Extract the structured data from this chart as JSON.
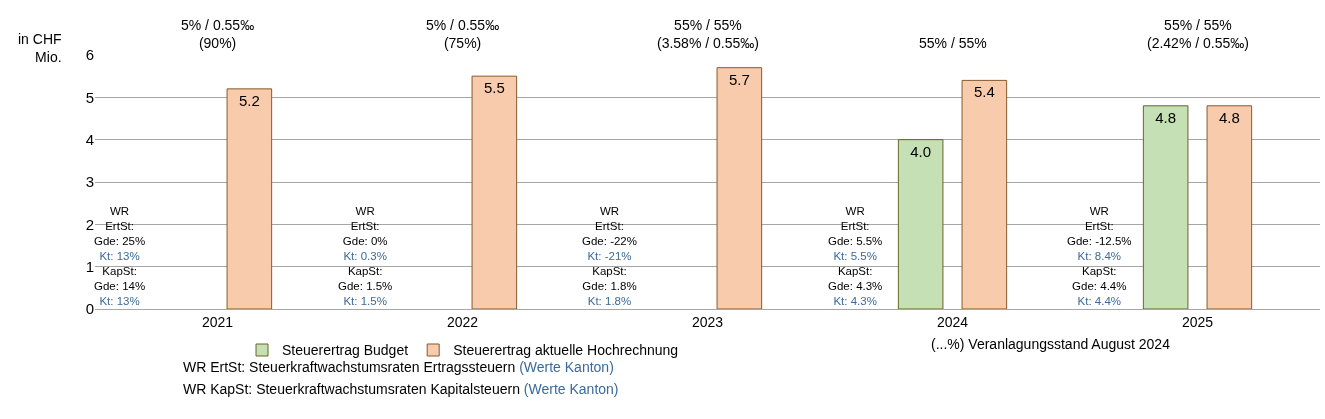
{
  "chart_data": {
    "type": "bar",
    "ylabel": "in CHF Mio.",
    "categories": [
      "2021",
      "2022",
      "2023",
      "2024",
      "2025"
    ],
    "series": [
      {
        "name": "Steuerertrag Budget",
        "color": "#c5e0b4",
        "values": [
          null,
          null,
          null,
          4.0,
          4.8
        ],
        "value_labels": [
          null,
          null,
          null,
          "4.0",
          "4.8"
        ]
      },
      {
        "name": "Steuerertrag aktuelle Hochrechnung",
        "color": "#f8cbad",
        "values": [
          5.2,
          5.5,
          5.7,
          5.4,
          4.8
        ],
        "value_labels": [
          "5.2",
          "5.5",
          "5.7",
          "5.4",
          "4.8"
        ]
      }
    ],
    "ylim": [
      0,
      6
    ],
    "yticks": [
      0,
      1,
      2,
      3,
      4,
      5,
      6
    ],
    "grid": "y",
    "legend": "bottom",
    "annotations": [
      "5% / 0.55‰\n(90%)",
      "5% / 0.55‰\n(75%)",
      "55% / 55%\n(3.58% / 0.55‰)",
      "55% / 55%",
      "55% / 55%\n(2.42% / 0.55‰)",
      "WR\nErtSt:\nGde: 25%\nKt: 13%\nKapSt:\nGde: 14%\nKt: 13%",
      "WR\nErtSt:\nGde: 0%\nKt: 0.3%\nKapSt:\nGde: 1.5%\nKt: 1.5%",
      "WR\nErtSt:\nGde: -22%\nKt: -21%\nKapSt:\nGde: 1.8%\nKt: 1.8%",
      "WR\nErtSt:\nGde: 5.5%\nKt: 5.5%\nKapSt:\nGde: 4.3%\nKt: 4.3%",
      "WR\nErtSt:\nGde: -12.5%\nKt: 8.4%\nKapSt:\nGde: 4.4%\nKt: 4.4%",
      "(...%) Veranlagungsstand August 2024",
      "WR ErtSt: Steuerkraftwachstumsraten Ertragssteuern (Werte Kanton)",
      "WR KapSt: Steuerkraftwachstumsraten Kapitalsteuern (Werte Kanton)"
    ]
  }
}
